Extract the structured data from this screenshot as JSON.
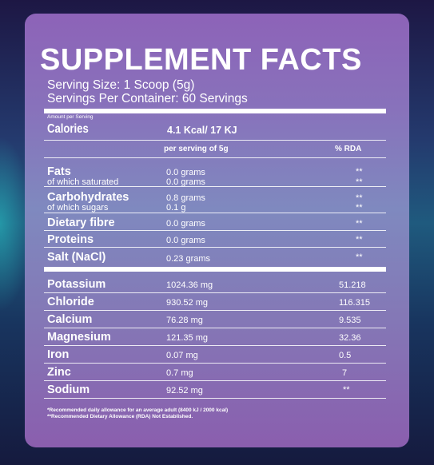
{
  "title": "SUPPLEMENT FACTS",
  "serving_size": "Serving Size: 1 Scoop (5g)",
  "servings_per_container": "Servings Per Container: 60 Servings",
  "amount_per_serving": "Amount per Serving",
  "calories": {
    "label": "Calories",
    "value": "4.1 Kcal/ 17 KJ"
  },
  "columns": {
    "per_serving": "per serving of 5g",
    "rda": "% RDA"
  },
  "nutrients": [
    {
      "label": "Fats",
      "value": "0.0 grams",
      "rda": "**"
    },
    {
      "label": "of which saturated",
      "value": "0.0 grams",
      "rda": "**"
    },
    {
      "label": "Carbohydrates",
      "value": "0.8 grams",
      "rda": "**"
    },
    {
      "label": "of which sugars",
      "value": "0.1 g",
      "rda": "**"
    },
    {
      "label": "Dietary fibre",
      "value": "0.0 grams",
      "rda": "**"
    },
    {
      "label": "Proteins",
      "value": "0.0 grams",
      "rda": "**"
    },
    {
      "label": "Salt (NaCl)",
      "value": "0.23 grams",
      "rda": "**"
    }
  ],
  "minerals": [
    {
      "label": "Potassium",
      "value": "1024.36 mg",
      "rda": "51.218"
    },
    {
      "label": "Chloride",
      "value": "930.52 mg",
      "rda": "116.315"
    },
    {
      "label": "Calcium",
      "value": "76.28 mg",
      "rda": "9.535"
    },
    {
      "label": "Magnesium",
      "value": "121.35 mg",
      "rda": "32.36"
    },
    {
      "label": "Iron",
      "value": "0.07 mg",
      "rda": "0.5"
    },
    {
      "label": "Zinc",
      "value": "0.7 mg",
      "rda": "7"
    },
    {
      "label": "Sodium",
      "value": "92.52 mg",
      "rda": "**"
    }
  ],
  "footnotes": [
    "*Recommended daily allowance for an average adult (8400 kJ / 2000 kcal)",
    "**Recommended Dietary Allowance (RDA) Not Established."
  ],
  "colors": {
    "panel_top": "#8d63b8",
    "panel_mid": "#7f89bf",
    "text": "#ffffff"
  }
}
